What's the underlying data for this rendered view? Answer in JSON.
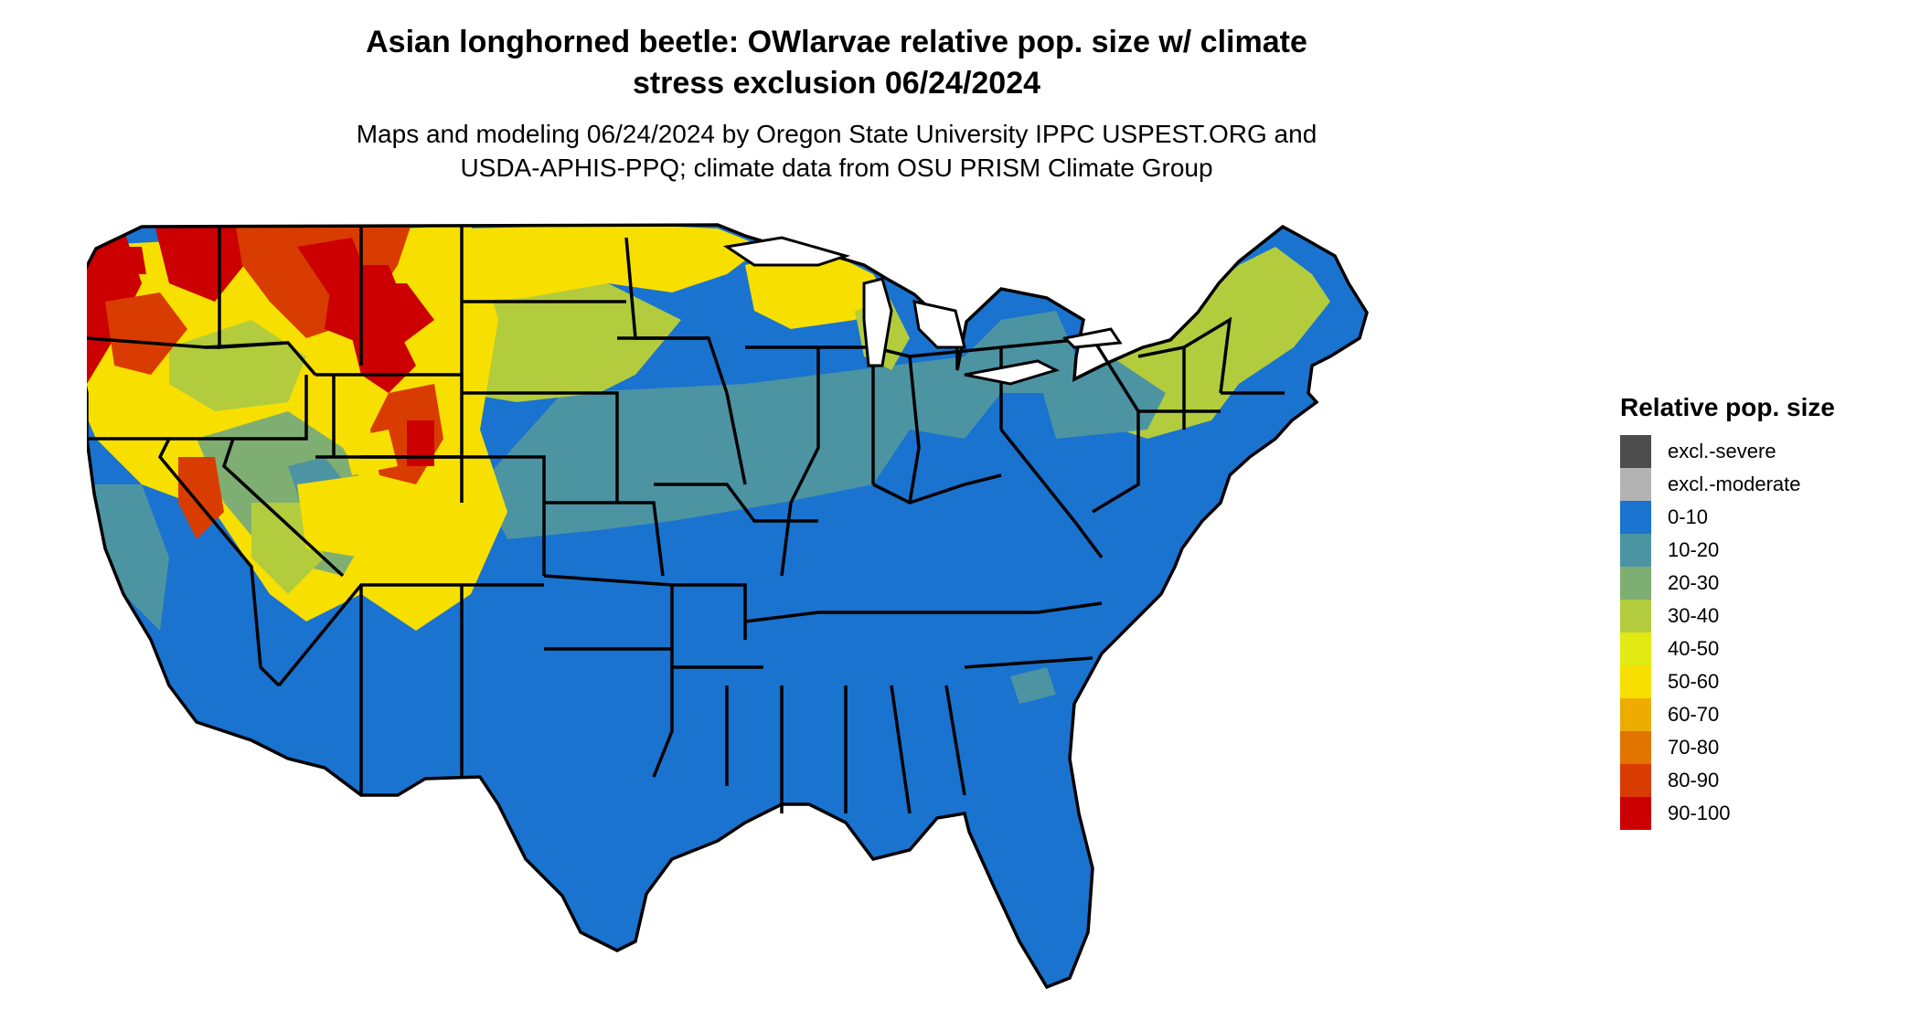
{
  "title_line1": "Asian longhorned beetle: OWlarvae relative pop. size w/ climate",
  "title_line2": "stress exclusion 06/24/2024",
  "subtitle_line1": "Maps and modeling 06/24/2024 by Oregon State University IPPC USPEST.ORG and",
  "subtitle_line2": "USDA-APHIS-PPQ; climate data from OSU PRISM Climate Group",
  "legend": {
    "title": "Relative pop. size",
    "items": [
      {
        "label": "excl.-severe",
        "color": "#4d4d4d"
      },
      {
        "label": "excl.-moderate",
        "color": "#b3b3b3"
      },
      {
        "label": "0-10",
        "color": "#1a73cf"
      },
      {
        "label": "10-20",
        "color": "#4d94a3"
      },
      {
        "label": "20-30",
        "color": "#7fae72"
      },
      {
        "label": "30-40",
        "color": "#b2cc3e"
      },
      {
        "label": "40-50",
        "color": "#e1ea12"
      },
      {
        "label": "50-60",
        "color": "#f7df00"
      },
      {
        "label": "60-70",
        "color": "#eeac00"
      },
      {
        "label": "70-80",
        "color": "#e27400"
      },
      {
        "label": "80-90",
        "color": "#d93c00"
      },
      {
        "label": "90-100",
        "color": "#cc0000"
      }
    ]
  }
}
